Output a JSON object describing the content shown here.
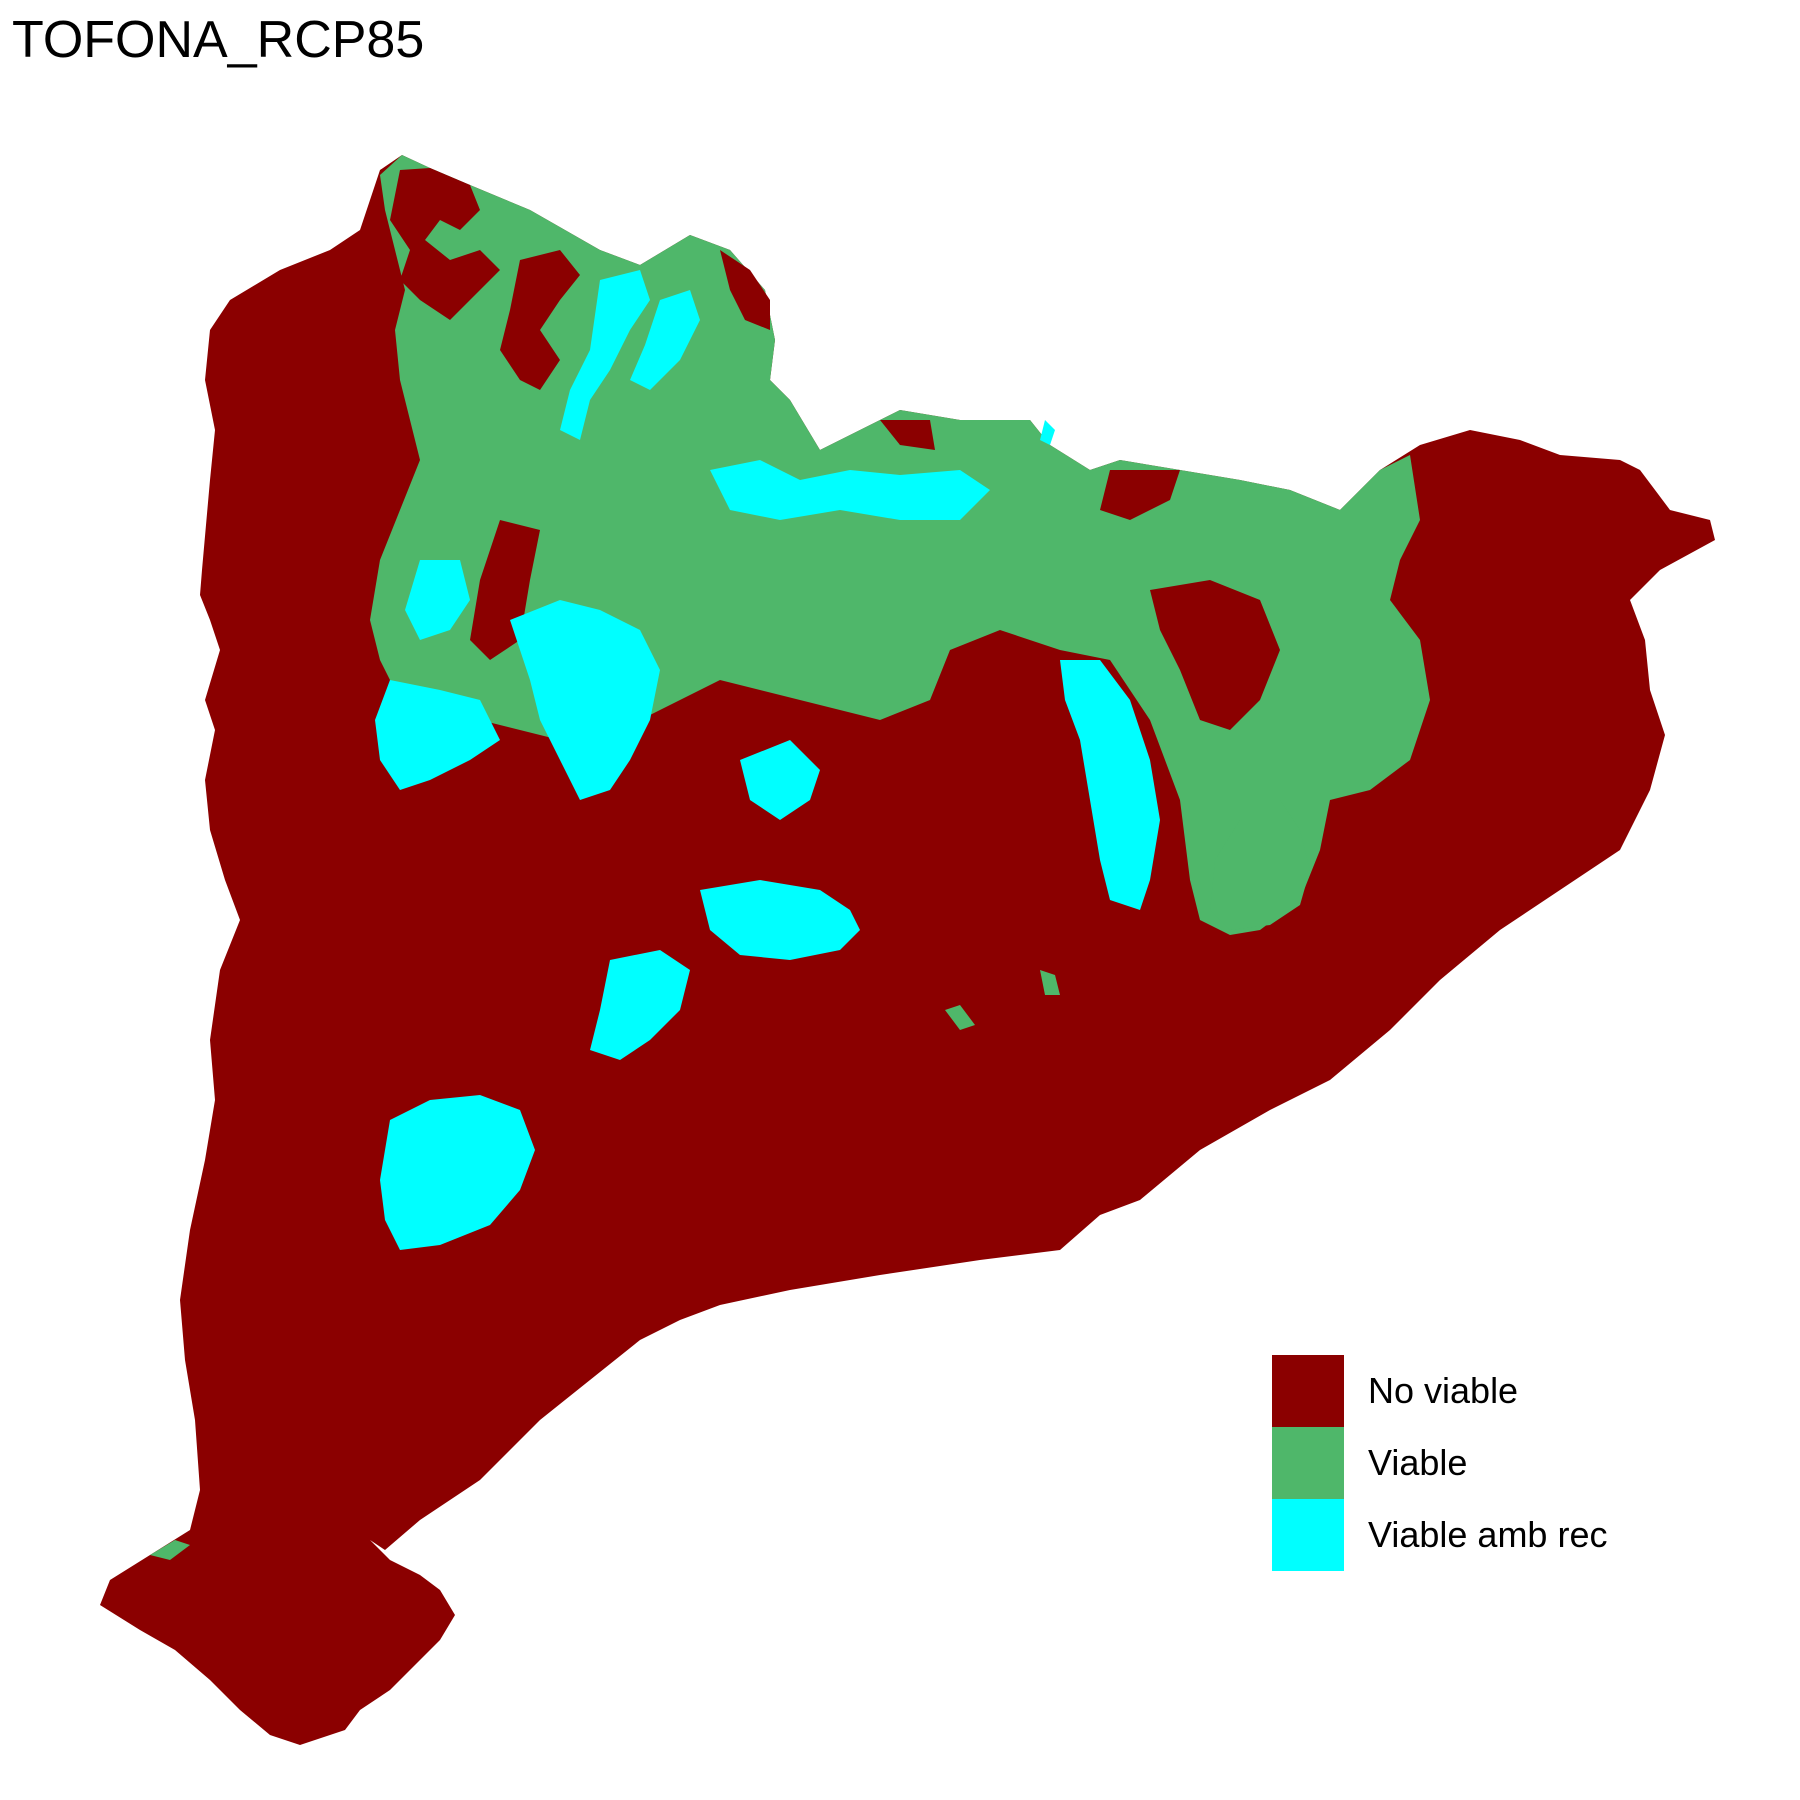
{
  "title": "TOFONA_RCP85",
  "colors": {
    "no_viable": "#8B0000",
    "viable": "#4FB76A",
    "viable_amb_rec": "#00FFFF"
  },
  "legend": {
    "items": [
      {
        "label": "No viable",
        "color": "#8B0000"
      },
      {
        "label": "Viable",
        "color": "#4FB76A"
      },
      {
        "label": "Viable amb rec",
        "color": "#00FFFF"
      }
    ]
  }
}
